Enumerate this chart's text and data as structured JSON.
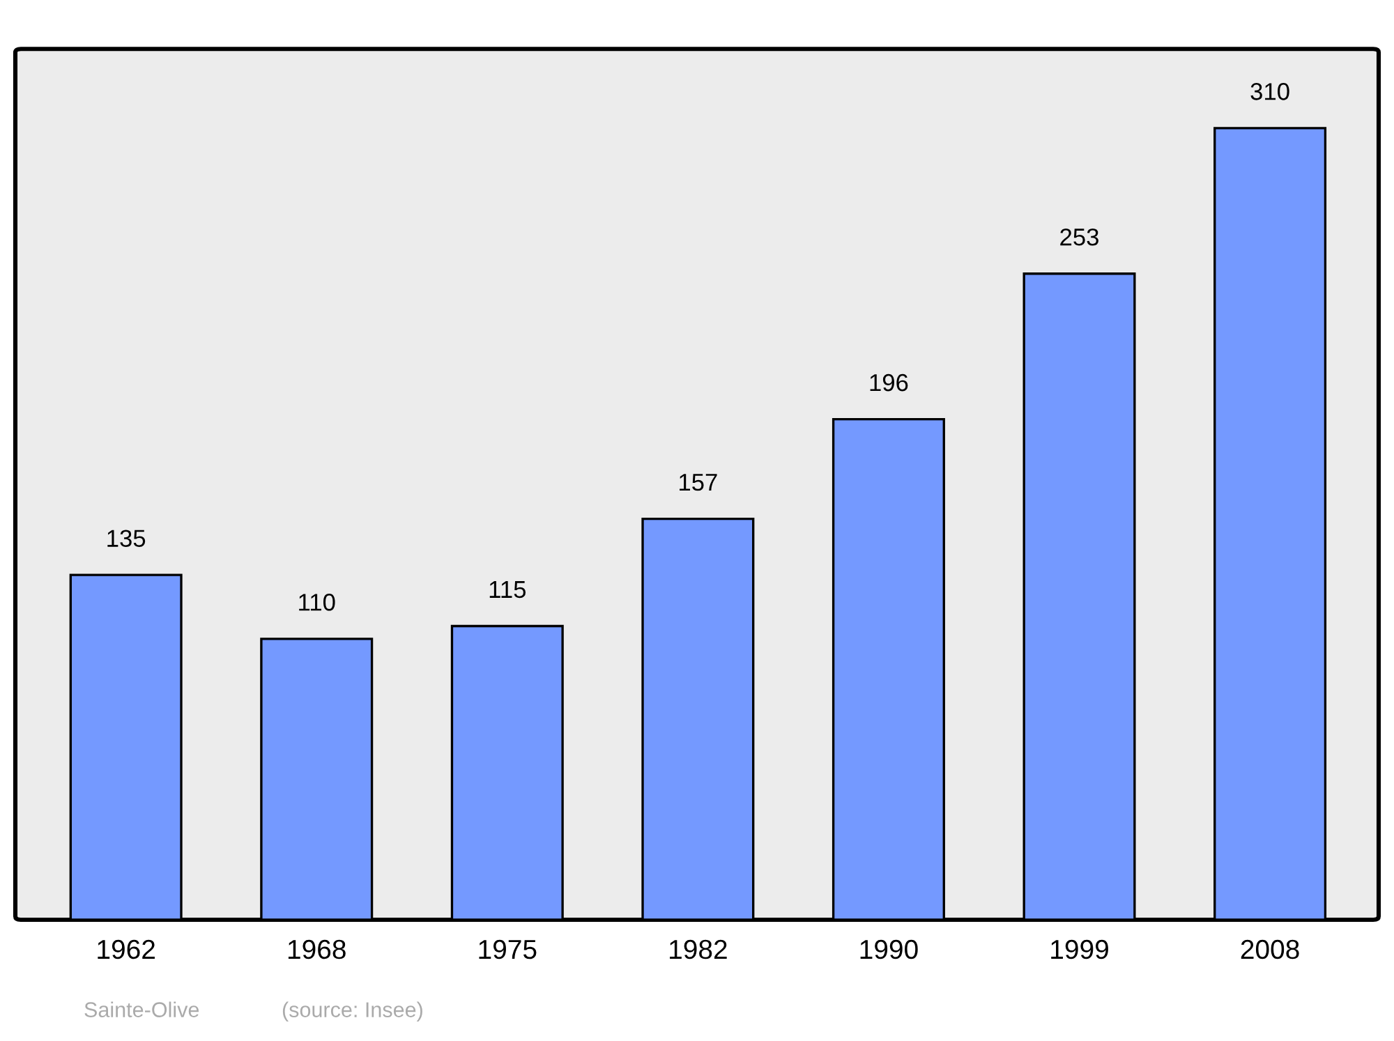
{
  "chart_data": {
    "type": "bar",
    "categories": [
      "1962",
      "1968",
      "1975",
      "1982",
      "1990",
      "1999",
      "2008"
    ],
    "values": [
      135,
      110,
      115,
      157,
      196,
      253,
      310
    ],
    "color": "#7499ff",
    "data_labels": true,
    "annotations": [
      "Sainte-Olive",
      "(source: Insee)"
    ]
  }
}
